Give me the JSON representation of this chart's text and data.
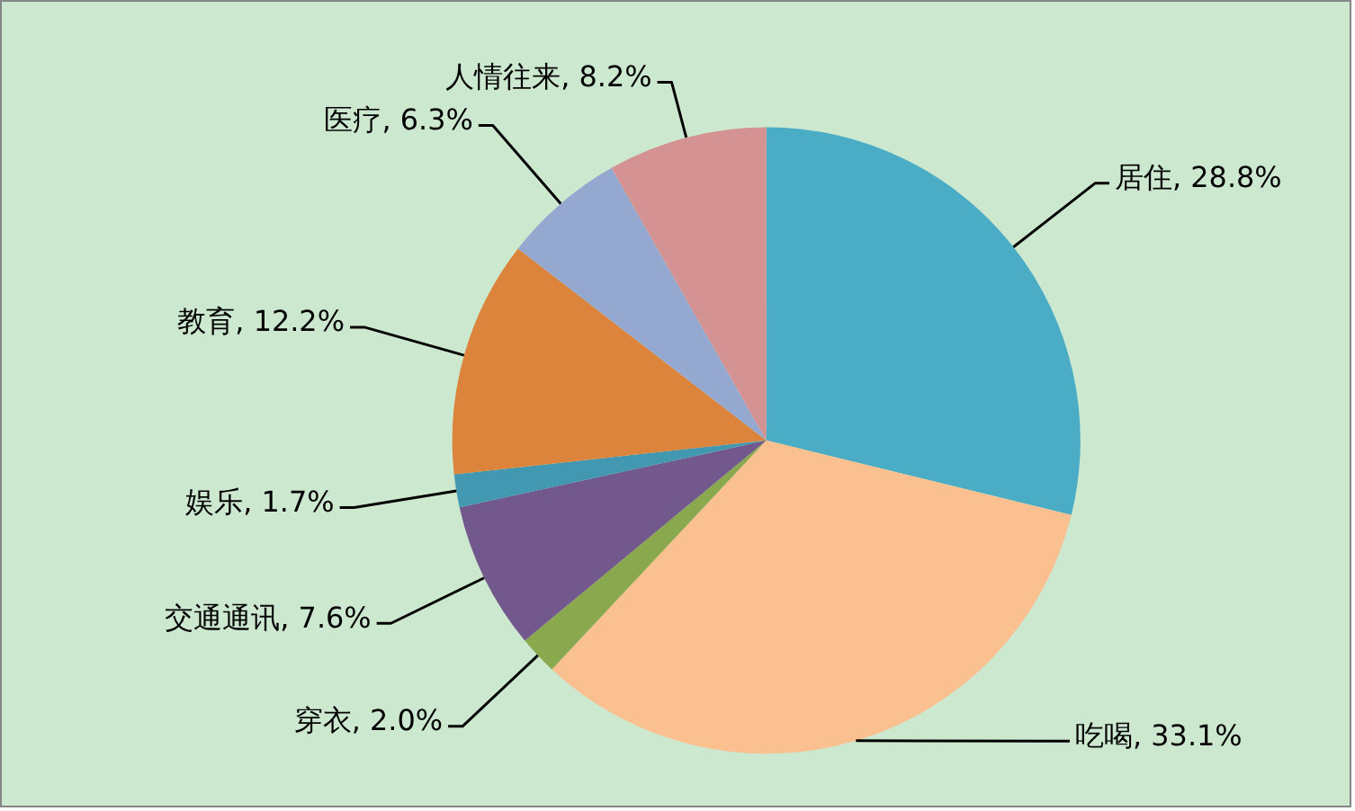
{
  "chart_data": {
    "type": "pie",
    "categories": [
      "居住",
      "吃喝",
      "穿衣",
      "交通通讯",
      "娱乐",
      "教育",
      "医疗",
      "人情往来"
    ],
    "values": [
      28.8,
      33.1,
      2.0,
      7.6,
      1.7,
      12.2,
      6.3,
      8.2
    ],
    "colors": [
      "#4bacc6",
      "#fac090",
      "#8aa84e",
      "#72588c",
      "#4198b0",
      "#dd843c",
      "#95a9d0",
      "#d49392"
    ],
    "value_labels": [
      "28.8%",
      "33.1%",
      "2.0%",
      "7.6%",
      "1.7%",
      "12.2%",
      "6.3%",
      "8.2%"
    ]
  }
}
